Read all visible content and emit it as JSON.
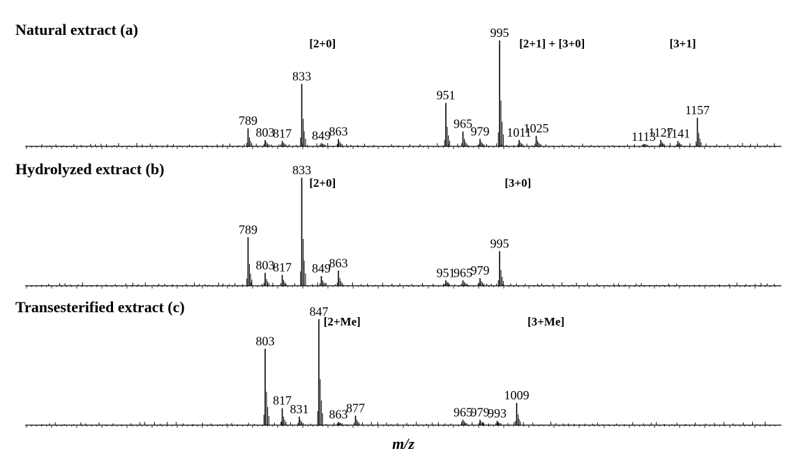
{
  "chart_data": [
    {
      "type": "line",
      "title": "Natural extract (a)",
      "group_labels": [
        {
          "text": "[2+0]",
          "mz": 850
        },
        {
          "text": "[2+1] + [3+0]",
          "mz": 1038
        },
        {
          "text": "[3+1]",
          "mz": 1145
        }
      ],
      "peaks": [
        {
          "mz": 789,
          "intensity": 0.17,
          "label": "789"
        },
        {
          "mz": 803,
          "intensity": 0.06,
          "label": "803"
        },
        {
          "mz": 817,
          "intensity": 0.05,
          "label": "817"
        },
        {
          "mz": 833,
          "intensity": 0.59,
          "label": "833"
        },
        {
          "mz": 849,
          "intensity": 0.03,
          "label": "849"
        },
        {
          "mz": 863,
          "intensity": 0.07,
          "label": "863"
        },
        {
          "mz": 951,
          "intensity": 0.41,
          "label": "951"
        },
        {
          "mz": 965,
          "intensity": 0.14,
          "label": "965"
        },
        {
          "mz": 979,
          "intensity": 0.07,
          "label": "979"
        },
        {
          "mz": 995,
          "intensity": 1.0,
          "label": "995"
        },
        {
          "mz": 1011,
          "intensity": 0.06,
          "label": "1011"
        },
        {
          "mz": 1025,
          "intensity": 0.1,
          "label": "1025"
        },
        {
          "mz": 1113,
          "intensity": 0.02,
          "label": "1113"
        },
        {
          "mz": 1127,
          "intensity": 0.06,
          "label": "1127"
        },
        {
          "mz": 1141,
          "intensity": 0.05,
          "label": "1141"
        },
        {
          "mz": 1157,
          "intensity": 0.27,
          "label": "1157"
        }
      ]
    },
    {
      "type": "line",
      "title": "Hydrolyzed extract (b)",
      "group_labels": [
        {
          "text": "[2+0]",
          "mz": 850
        },
        {
          "text": "[3+0]",
          "mz": 1010
        }
      ],
      "peaks": [
        {
          "mz": 789,
          "intensity": 0.45,
          "label": "789"
        },
        {
          "mz": 803,
          "intensity": 0.12,
          "label": "803"
        },
        {
          "mz": 817,
          "intensity": 0.1,
          "label": "817"
        },
        {
          "mz": 833,
          "intensity": 1.0,
          "label": "833"
        },
        {
          "mz": 849,
          "intensity": 0.09,
          "label": "849"
        },
        {
          "mz": 863,
          "intensity": 0.14,
          "label": "863"
        },
        {
          "mz": 951,
          "intensity": 0.05,
          "label": "951"
        },
        {
          "mz": 965,
          "intensity": 0.05,
          "label": "965"
        },
        {
          "mz": 979,
          "intensity": 0.07,
          "label": "979"
        },
        {
          "mz": 995,
          "intensity": 0.32,
          "label": "995"
        }
      ]
    },
    {
      "type": "line",
      "title": "Transesterified extract (c)",
      "group_labels": [
        {
          "text": "[2+Me]",
          "mz": 866
        },
        {
          "text": "[3+Me]",
          "mz": 1033
        }
      ],
      "peaks": [
        {
          "mz": 803,
          "intensity": 0.72,
          "label": "803"
        },
        {
          "mz": 817,
          "intensity": 0.16,
          "label": "817"
        },
        {
          "mz": 831,
          "intensity": 0.08,
          "label": "831"
        },
        {
          "mz": 847,
          "intensity": 1.0,
          "label": "847"
        },
        {
          "mz": 863,
          "intensity": 0.03,
          "label": "863"
        },
        {
          "mz": 877,
          "intensity": 0.09,
          "label": "877"
        },
        {
          "mz": 965,
          "intensity": 0.05,
          "label": "965"
        },
        {
          "mz": 979,
          "intensity": 0.05,
          "label": "979"
        },
        {
          "mz": 993,
          "intensity": 0.04,
          "label": "993"
        },
        {
          "mz": 1009,
          "intensity": 0.21,
          "label": "1009"
        }
      ]
    }
  ],
  "xlabel": "m/z"
}
